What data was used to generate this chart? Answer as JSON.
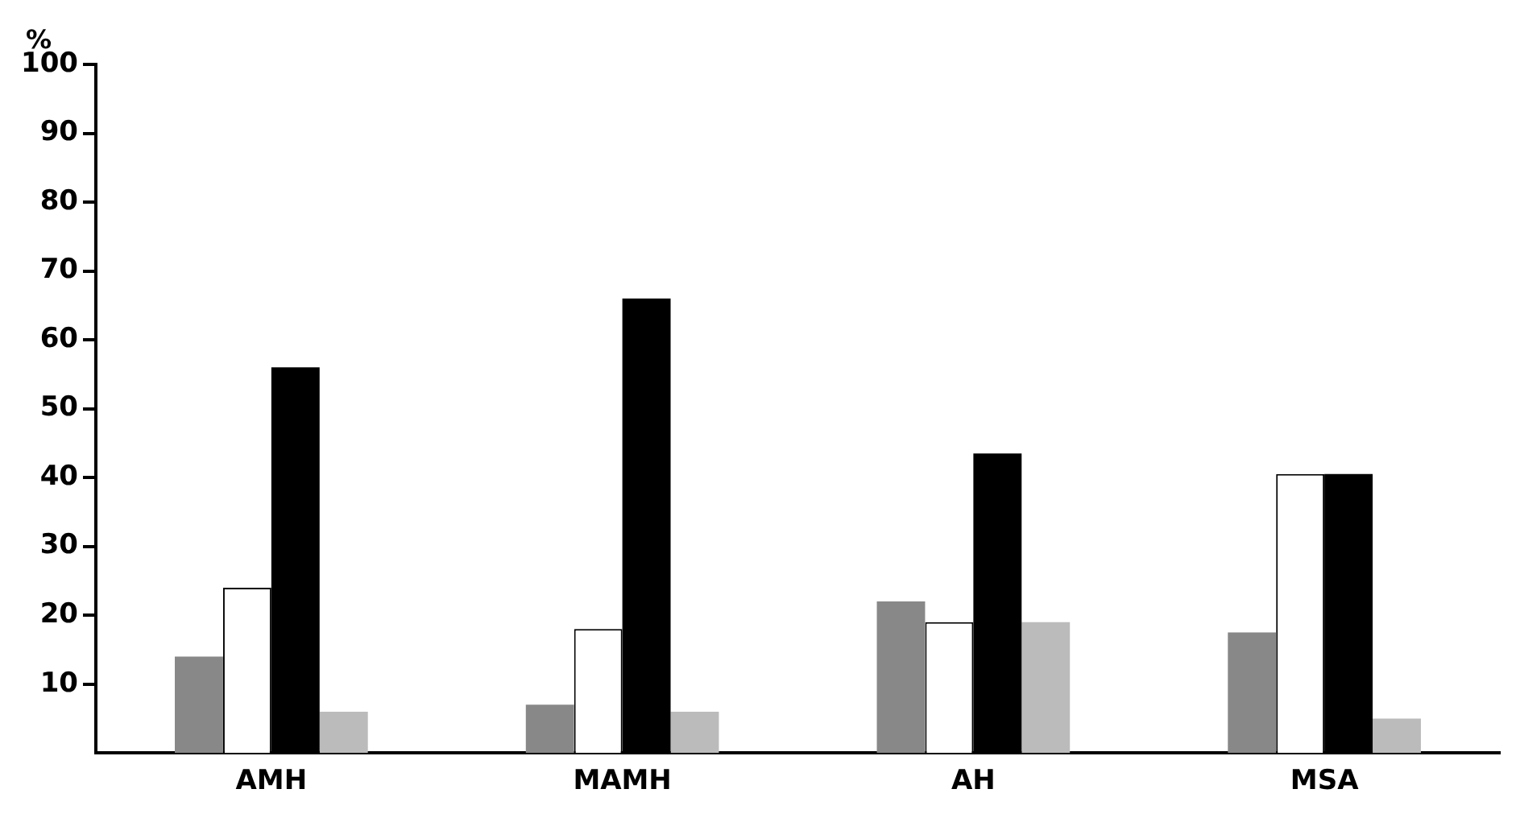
{
  "chart_data": {
    "type": "bar",
    "ylabel": "%",
    "categories": [
      "AMH",
      "MAMH",
      "AH",
      "MSA"
    ],
    "series": [
      {
        "color": "#888888",
        "values": [
          14,
          7,
          22,
          17.5
        ]
      },
      {
        "color": "#ffffff",
        "values": [
          24,
          18,
          19,
          40.5
        ]
      },
      {
        "color": "#000000",
        "values": [
          56,
          66,
          43.5,
          40.5
        ]
      },
      {
        "color": "#bbbbbb",
        "values": [
          6,
          6,
          19,
          5
        ]
      }
    ],
    "ylim": [
      0,
      100
    ],
    "yticks": [
      10,
      20,
      30,
      40,
      50,
      60,
      70,
      80,
      90,
      100
    ],
    "grid": false,
    "legend": false
  }
}
